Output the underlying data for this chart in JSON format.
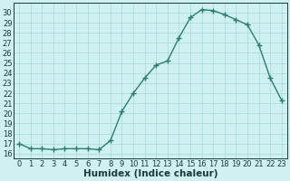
{
  "x": [
    0,
    1,
    2,
    3,
    4,
    5,
    6,
    7,
    8,
    9,
    10,
    11,
    12,
    13,
    14,
    15,
    16,
    17,
    18,
    19,
    20,
    21,
    22,
    23
  ],
  "y": [
    17.0,
    16.5,
    16.5,
    16.4,
    16.5,
    16.5,
    16.5,
    16.4,
    17.3,
    20.2,
    22.0,
    23.5,
    24.8,
    25.2,
    27.5,
    29.5,
    30.3,
    30.2,
    29.8,
    29.3,
    28.8,
    26.8,
    23.5,
    21.3
  ],
  "line_color": "#2e7d6e",
  "bg_color": "#cef0f0",
  "grid_color": "#aad8d8",
  "xlabel": "Humidex (Indice chaleur)",
  "xlim": [
    -0.5,
    23.5
  ],
  "ylim": [
    15.5,
    31.0
  ],
  "yticks": [
    16,
    17,
    18,
    19,
    20,
    21,
    22,
    23,
    24,
    25,
    26,
    27,
    28,
    29,
    30
  ],
  "xticks": [
    0,
    1,
    2,
    3,
    4,
    5,
    6,
    7,
    8,
    9,
    10,
    11,
    12,
    13,
    14,
    15,
    16,
    17,
    18,
    19,
    20,
    21,
    22,
    23
  ],
  "font_color": "#1a3a3a",
  "marker": "+",
  "markersize": 4,
  "markeredgewidth": 1.0,
  "linewidth": 1.0,
  "xlabel_fontsize": 7.5,
  "tick_fontsize": 6.0
}
